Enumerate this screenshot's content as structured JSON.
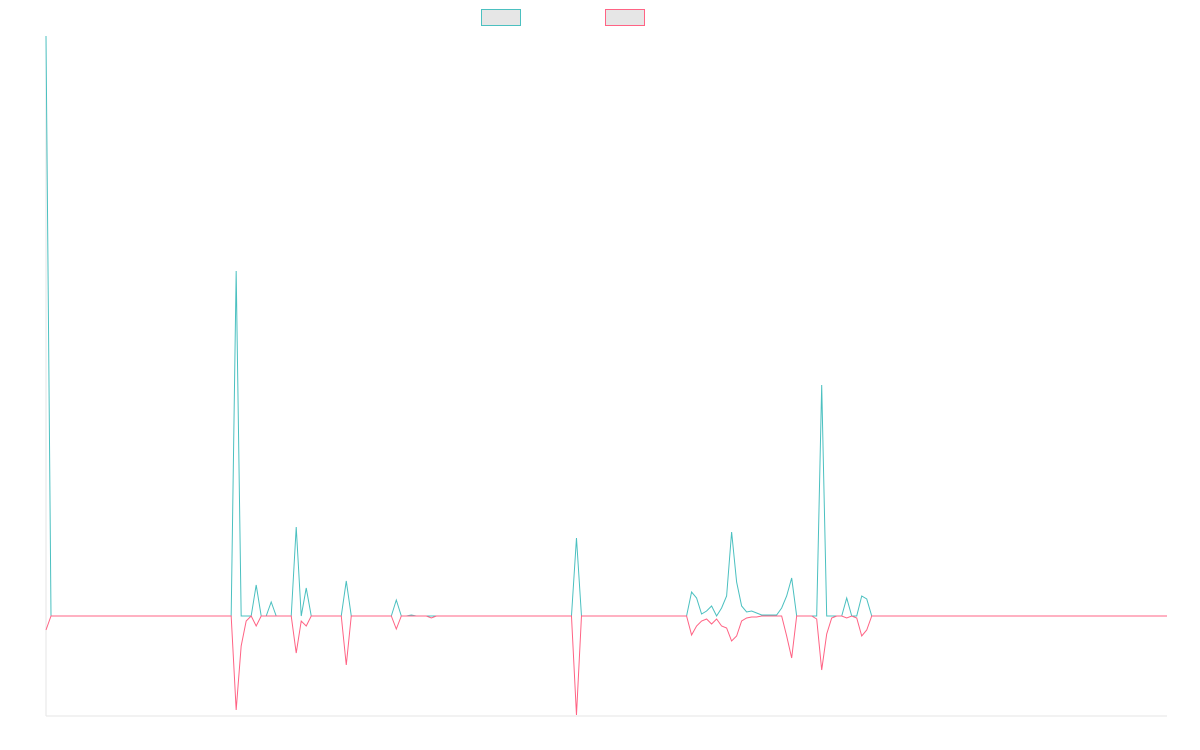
{
  "chart_data": {
    "type": "line",
    "xlim": [
      0,
      224
    ],
    "ylim": [
      -100,
      580
    ],
    "series": [
      {
        "color": "#4bc0c0",
        "values": [
          580,
          0,
          0,
          0,
          0,
          0,
          0,
          0,
          0,
          0,
          0,
          0,
          0,
          0,
          0,
          0,
          0,
          0,
          0,
          0,
          0,
          0,
          0,
          0,
          0,
          0,
          0,
          0,
          0,
          0,
          0,
          0,
          0,
          0,
          0,
          0,
          0,
          0,
          345,
          0,
          0,
          0,
          31,
          0,
          0,
          14,
          0,
          0,
          0,
          0,
          89,
          0,
          28,
          0,
          0,
          0,
          0,
          0,
          0,
          0,
          35,
          0,
          0,
          0,
          0,
          0,
          0,
          0,
          0,
          0,
          16,
          0,
          0,
          1,
          0,
          0,
          0,
          0,
          0,
          0,
          0,
          0,
          0,
          0,
          0,
          0,
          0,
          0,
          0,
          0,
          0,
          0,
          0,
          0,
          0,
          0,
          0,
          0,
          0,
          0,
          0,
          0,
          0,
          0,
          0,
          0,
          78,
          0,
          0,
          0,
          0,
          0,
          0,
          0,
          0,
          0,
          0,
          0,
          0,
          0,
          0,
          0,
          0,
          0,
          0,
          0,
          0,
          0,
          0,
          24,
          18,
          2,
          5,
          10,
          0,
          8,
          20,
          84,
          34,
          10,
          4,
          5,
          3,
          1,
          1,
          1,
          1,
          8,
          20,
          38,
          0,
          0,
          0,
          0,
          0,
          231,
          0,
          0,
          0,
          0,
          18,
          0,
          0,
          20,
          17,
          0,
          0,
          0,
          0,
          0,
          0,
          0,
          0,
          0,
          0,
          0,
          0,
          0,
          0,
          0,
          0,
          0,
          0,
          0,
          0,
          0,
          0,
          0,
          0,
          0,
          0,
          0,
          0,
          0,
          0,
          0,
          0,
          0,
          0,
          0,
          0,
          0,
          0,
          0,
          0,
          0,
          0,
          0,
          0,
          0,
          0,
          0,
          0,
          0,
          0,
          0,
          0,
          0,
          0,
          0,
          0,
          0,
          0,
          0,
          0
        ]
      },
      {
        "color": "#ff6384",
        "values": [
          -14,
          0,
          0,
          0,
          0,
          0,
          0,
          0,
          0,
          0,
          0,
          0,
          0,
          0,
          0,
          0,
          0,
          0,
          0,
          0,
          0,
          0,
          0,
          0,
          0,
          0,
          0,
          0,
          0,
          0,
          0,
          0,
          0,
          0,
          0,
          0,
          0,
          0,
          -94,
          -30,
          -5,
          0,
          -10,
          0,
          0,
          0,
          0,
          0,
          0,
          0,
          -37,
          -5,
          -10,
          0,
          0,
          0,
          0,
          0,
          0,
          0,
          -49,
          0,
          0,
          0,
          0,
          0,
          0,
          0,
          0,
          0,
          -13,
          0,
          0,
          0,
          0,
          0,
          0,
          -2,
          0,
          0,
          0,
          0,
          0,
          0,
          0,
          0,
          0,
          0,
          0,
          0,
          0,
          0,
          0,
          0,
          0,
          0,
          0,
          0,
          0,
          0,
          0,
          0,
          0,
          0,
          0,
          0,
          -99,
          0,
          0,
          0,
          0,
          0,
          0,
          0,
          0,
          0,
          0,
          0,
          0,
          0,
          0,
          0,
          0,
          0,
          0,
          0,
          0,
          0,
          0,
          -19,
          -10,
          -5,
          -3,
          -8,
          -3,
          -10,
          -12,
          -25,
          -20,
          -5,
          -2,
          -1,
          -1,
          0,
          0,
          0,
          0,
          0,
          -20,
          -42,
          0,
          0,
          0,
          0,
          -3,
          -54,
          -18,
          -2,
          0,
          0,
          -2,
          0,
          -2,
          -20,
          -14,
          0,
          0,
          0,
          0,
          0,
          0,
          0,
          0,
          0,
          0,
          0,
          0,
          0,
          0,
          0,
          0,
          0,
          0,
          0,
          0,
          0,
          0,
          0,
          0,
          0,
          0,
          0,
          0,
          0,
          0,
          0,
          0,
          0,
          0,
          0,
          0,
          0,
          0,
          0,
          0,
          0,
          0,
          0,
          0,
          0,
          0,
          0,
          0,
          0,
          0,
          0,
          0,
          0,
          0,
          0,
          0,
          0,
          0,
          0,
          0
        ]
      }
    ]
  }
}
